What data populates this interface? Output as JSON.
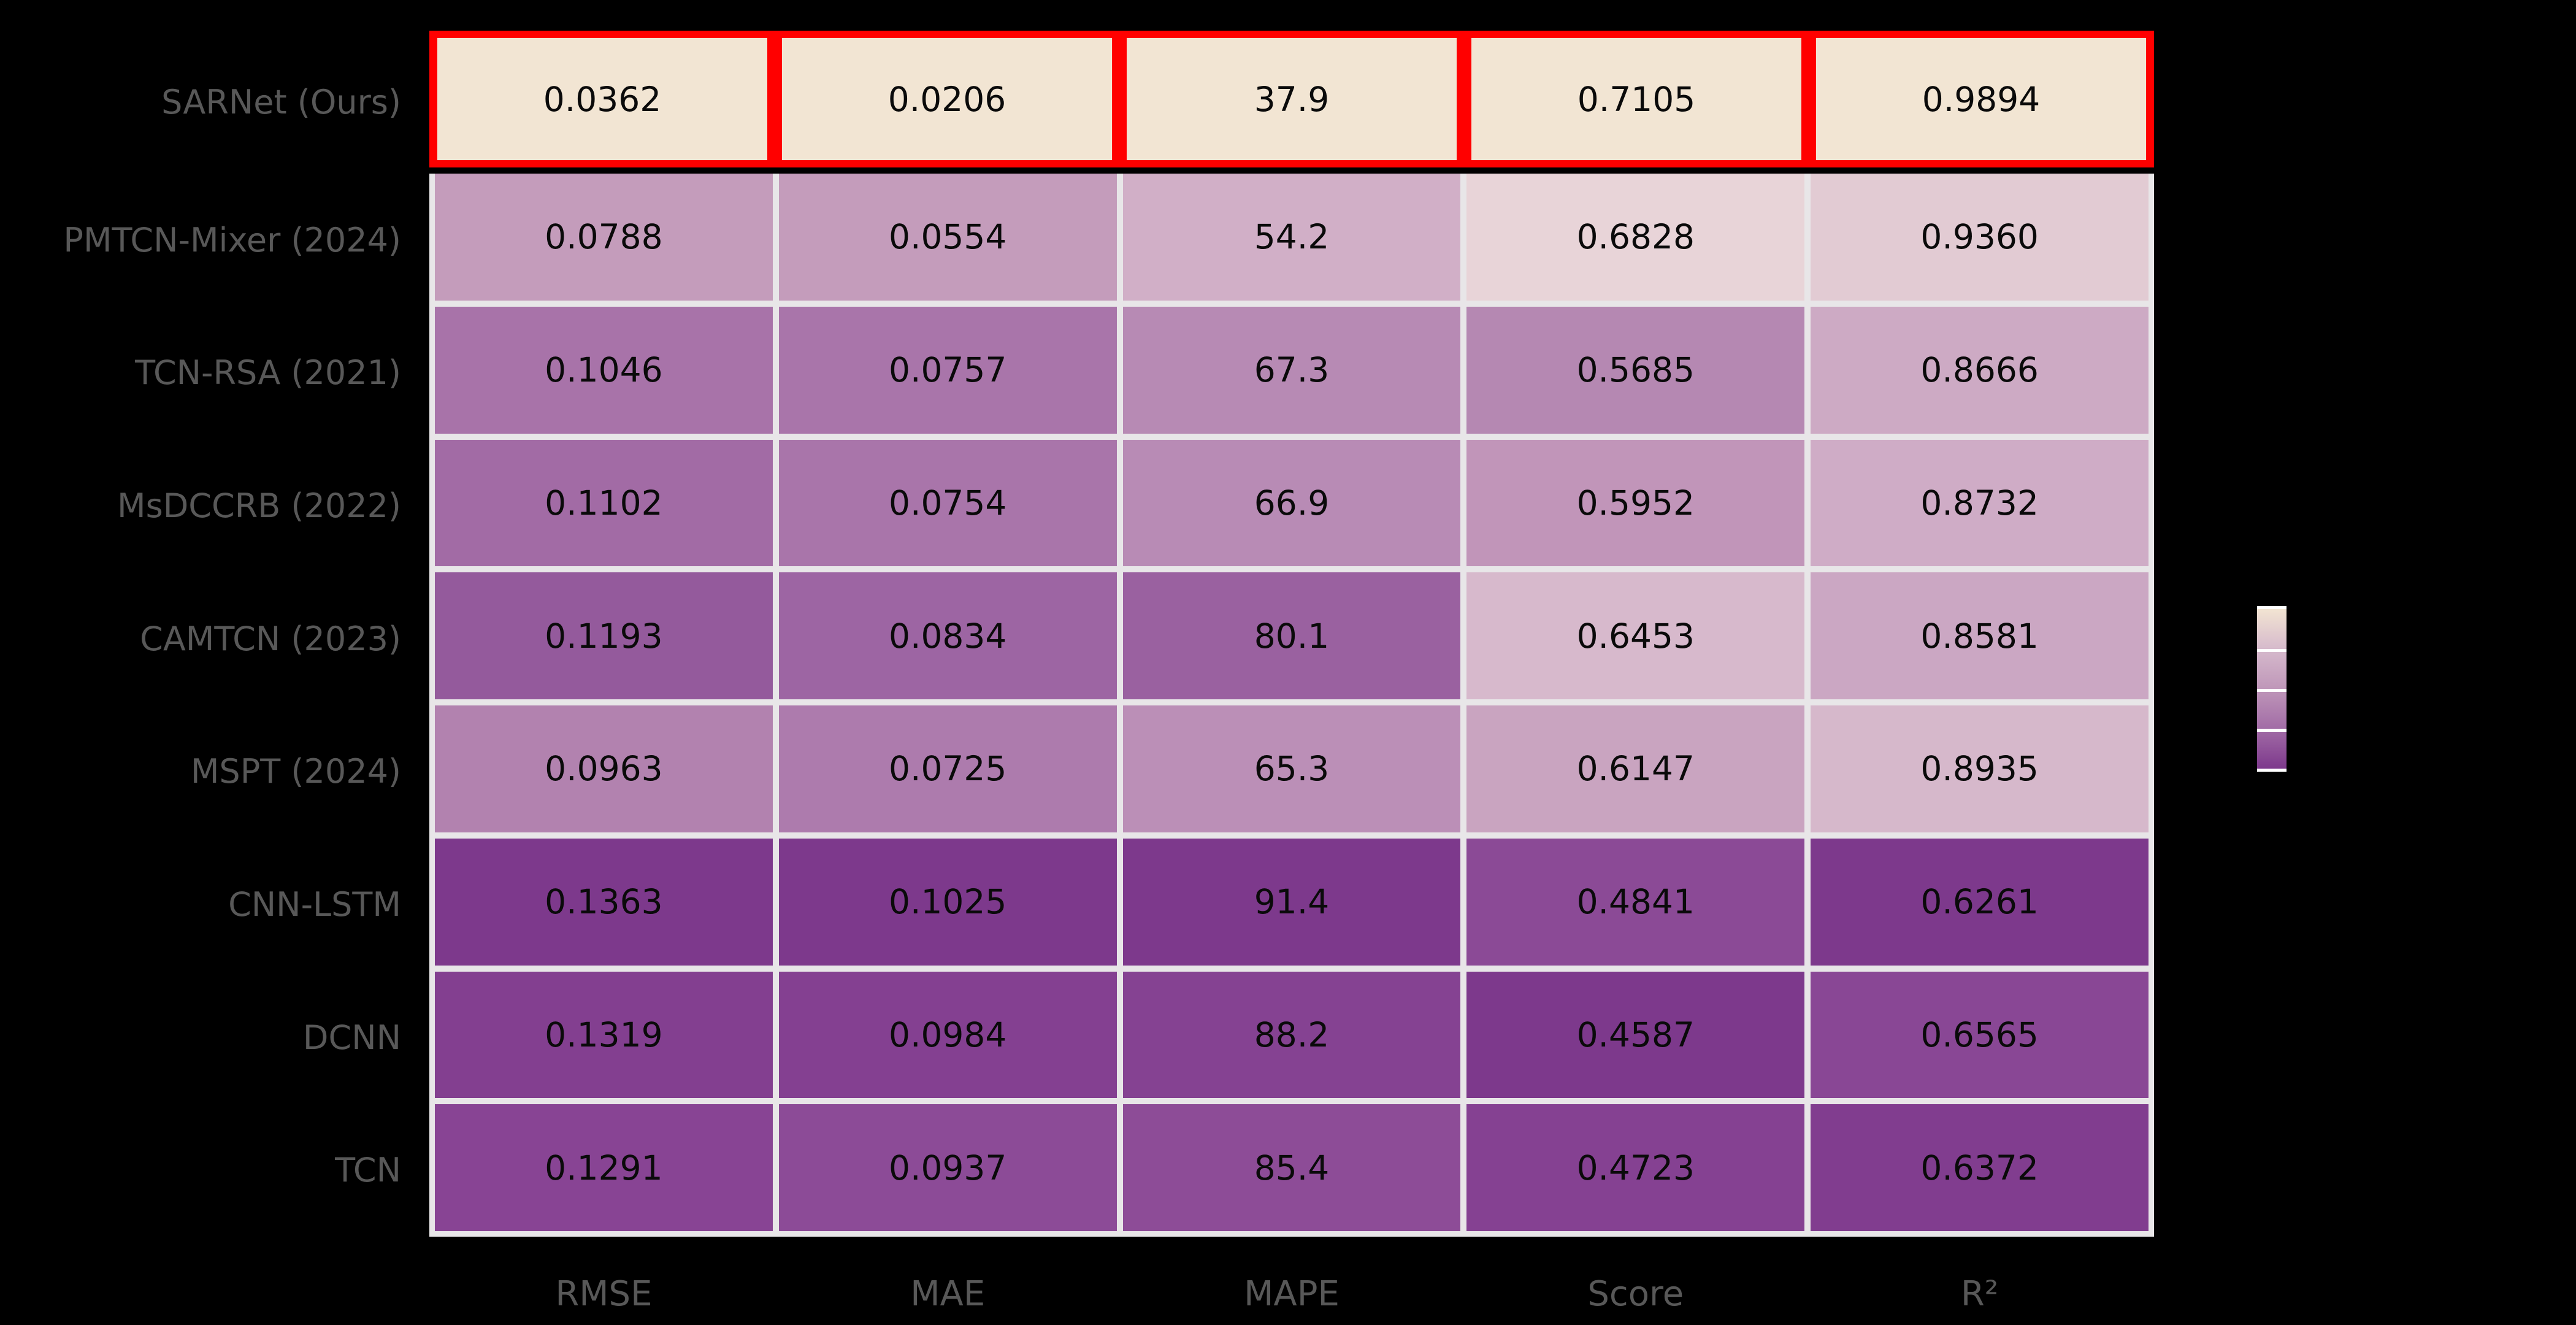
{
  "chart_data": {
    "type": "heatmap",
    "rows": [
      "SARNet (Ours)",
      "PMTCN-Mixer (2024)",
      "TCN-RSA (2021)",
      "MsDCCRB (2022)",
      "CAMTCN (2023)",
      "MSPT (2024)",
      "CNN-LSTM",
      "DCNN",
      "TCN"
    ],
    "columns": [
      "RMSE",
      "MAE",
      "MAPE",
      "Score",
      "R²"
    ],
    "values": [
      [
        0.0362,
        0.0206,
        37.9,
        0.7105,
        0.9894
      ],
      [
        0.0788,
        0.0554,
        54.2,
        0.6828,
        0.936
      ],
      [
        0.1046,
        0.0757,
        67.3,
        0.5685,
        0.8666
      ],
      [
        0.1102,
        0.0754,
        66.9,
        0.5952,
        0.8732
      ],
      [
        0.1193,
        0.0834,
        80.1,
        0.6453,
        0.8581
      ],
      [
        0.0963,
        0.0725,
        65.3,
        0.6147,
        0.8935
      ],
      [
        0.1363,
        0.1025,
        91.4,
        0.4841,
        0.6261
      ],
      [
        0.1319,
        0.0984,
        88.2,
        0.4587,
        0.6565
      ],
      [
        0.1291,
        0.0937,
        85.4,
        0.4723,
        0.6372
      ]
    ],
    "values_display": [
      [
        "0.0362",
        "0.0206",
        "37.9",
        "0.7105",
        "0.9894"
      ],
      [
        "0.0788",
        "0.0554",
        "54.2",
        "0.6828",
        "0.9360"
      ],
      [
        "0.1046",
        "0.0757",
        "67.3",
        "0.5685",
        "0.8666"
      ],
      [
        "0.1102",
        "0.0754",
        "66.9",
        "0.5952",
        "0.8732"
      ],
      [
        "0.1193",
        "0.0834",
        "80.1",
        "0.6453",
        "0.8581"
      ],
      [
        "0.0963",
        "0.0725",
        "65.3",
        "0.6147",
        "0.8935"
      ],
      [
        "0.1363",
        "0.1025",
        "91.4",
        "0.4841",
        "0.6261"
      ],
      [
        "0.1319",
        "0.0984",
        "88.2",
        "0.4587",
        "0.6565"
      ],
      [
        "0.1291",
        "0.0937",
        "85.4",
        "0.4723",
        "0.6372"
      ]
    ],
    "cell_colors": [
      [
        "#f2e5d3",
        "#f2e5d3",
        "#f2e5d3",
        "#f2e5d3",
        "#f2e5d3"
      ],
      [
        "#c49cbb",
        "#c49cbb",
        "#d1afc7",
        "#e8d4d8",
        "#e2cbd3"
      ],
      [
        "#a873a9",
        "#a975aa",
        "#b78ab4",
        "#b588b2",
        "#cdaac4"
      ],
      [
        "#a26ba5",
        "#a975aa",
        "#b88bb5",
        "#c195b9",
        "#cfacc6"
      ],
      [
        "#945a9c",
        "#9d65a3",
        "#9a61a0",
        "#d7b9cc",
        "#cba7c3"
      ],
      [
        "#b282af",
        "#ad7bad",
        "#bb8fb7",
        "#c9a4c0",
        "#d6b8cb"
      ],
      [
        "#7d398c",
        "#7d398c",
        "#7d398c",
        "#8b4a96",
        "#7d398c"
      ],
      [
        "#833f90",
        "#844091",
        "#854292",
        "#7d398c",
        "#894795"
      ],
      [
        "#884494",
        "#8c4b97",
        "#8d4c97",
        "#854192",
        "#813d8f"
      ]
    ],
    "highlight": {
      "row": "SARNet (Ours)",
      "row_index": 0,
      "border_color": "#ff0000"
    },
    "colorbar": {
      "position": "right",
      "segments": 4,
      "gradient_stops": [
        "#f2e4d2",
        "#d6bacc",
        "#bf97b9",
        "#a26ca6",
        "#7d398c"
      ]
    },
    "style": {
      "background": "#000000",
      "label_color": "#585858",
      "cell_text_color": "#0a0a0a",
      "grid_line_color": "#e8e6e8"
    },
    "legend_position": "none",
    "grid": "white cell separators"
  }
}
